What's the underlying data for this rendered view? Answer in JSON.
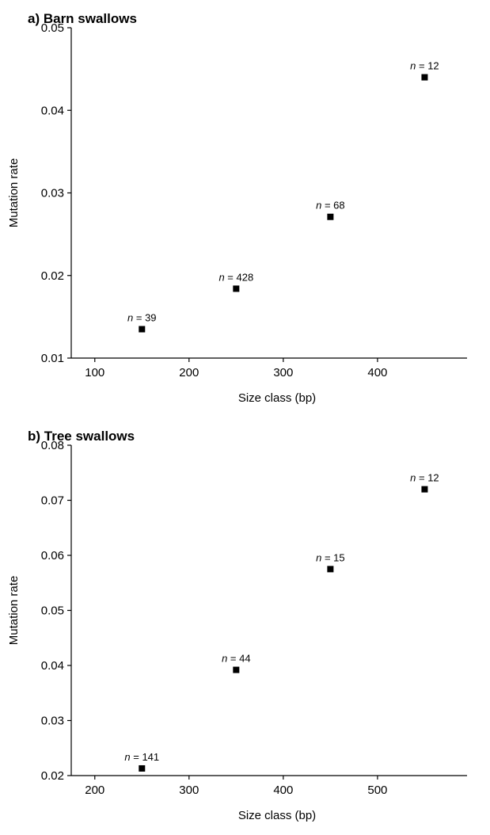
{
  "chart_data": [
    {
      "type": "scatter",
      "title": "a) Barn swallows",
      "xlabel": "Size class (bp)",
      "ylabel": "Mutation rate",
      "xlim": [
        75,
        495
      ],
      "ylim": [
        0.01,
        0.05
      ],
      "xticks": [
        100,
        200,
        300,
        400
      ],
      "xtick_labels": [
        "100",
        "200",
        "300",
        "400"
      ],
      "yticks": [
        0.01,
        0.02,
        0.03,
        0.04,
        0.05
      ],
      "ytick_labels": [
        "0.01",
        "0.02",
        "0.03",
        "0.04",
        "0.05"
      ],
      "grid": false,
      "marker": "square",
      "marker_color": "#000000",
      "points": [
        {
          "x": 150,
          "y": 0.0135,
          "n_prefix": "n",
          "n_value": " = 39"
        },
        {
          "x": 250,
          "y": 0.0184,
          "n_prefix": "n",
          "n_value": " = 428"
        },
        {
          "x": 350,
          "y": 0.0271,
          "n_prefix": "n",
          "n_value": " = 68"
        },
        {
          "x": 450,
          "y": 0.044,
          "n_prefix": "n",
          "n_value": " = 12"
        }
      ]
    },
    {
      "type": "scatter",
      "title": "b) Tree swallows",
      "xlabel": "Size class (bp)",
      "ylabel": "Mutation rate",
      "xlim": [
        175,
        595
      ],
      "ylim": [
        0.02,
        0.08
      ],
      "xticks": [
        200,
        300,
        400,
        500
      ],
      "xtick_labels": [
        "200",
        "300",
        "400",
        "500"
      ],
      "yticks": [
        0.02,
        0.03,
        0.04,
        0.05,
        0.06,
        0.07,
        0.08
      ],
      "ytick_labels": [
        "0.02",
        "0.03",
        "0.04",
        "0.05",
        "0.06",
        "0.07",
        "0.08"
      ],
      "grid": false,
      "marker": "square",
      "marker_color": "#000000",
      "points": [
        {
          "x": 250,
          "y": 0.0213,
          "n_prefix": "n",
          "n_value": " = 141"
        },
        {
          "x": 350,
          "y": 0.0392,
          "n_prefix": "n",
          "n_value": " = 44"
        },
        {
          "x": 450,
          "y": 0.0575,
          "n_prefix": "n",
          "n_value": " = 15"
        },
        {
          "x": 550,
          "y": 0.072,
          "n_prefix": "n",
          "n_value": " = 12"
        }
      ]
    }
  ]
}
